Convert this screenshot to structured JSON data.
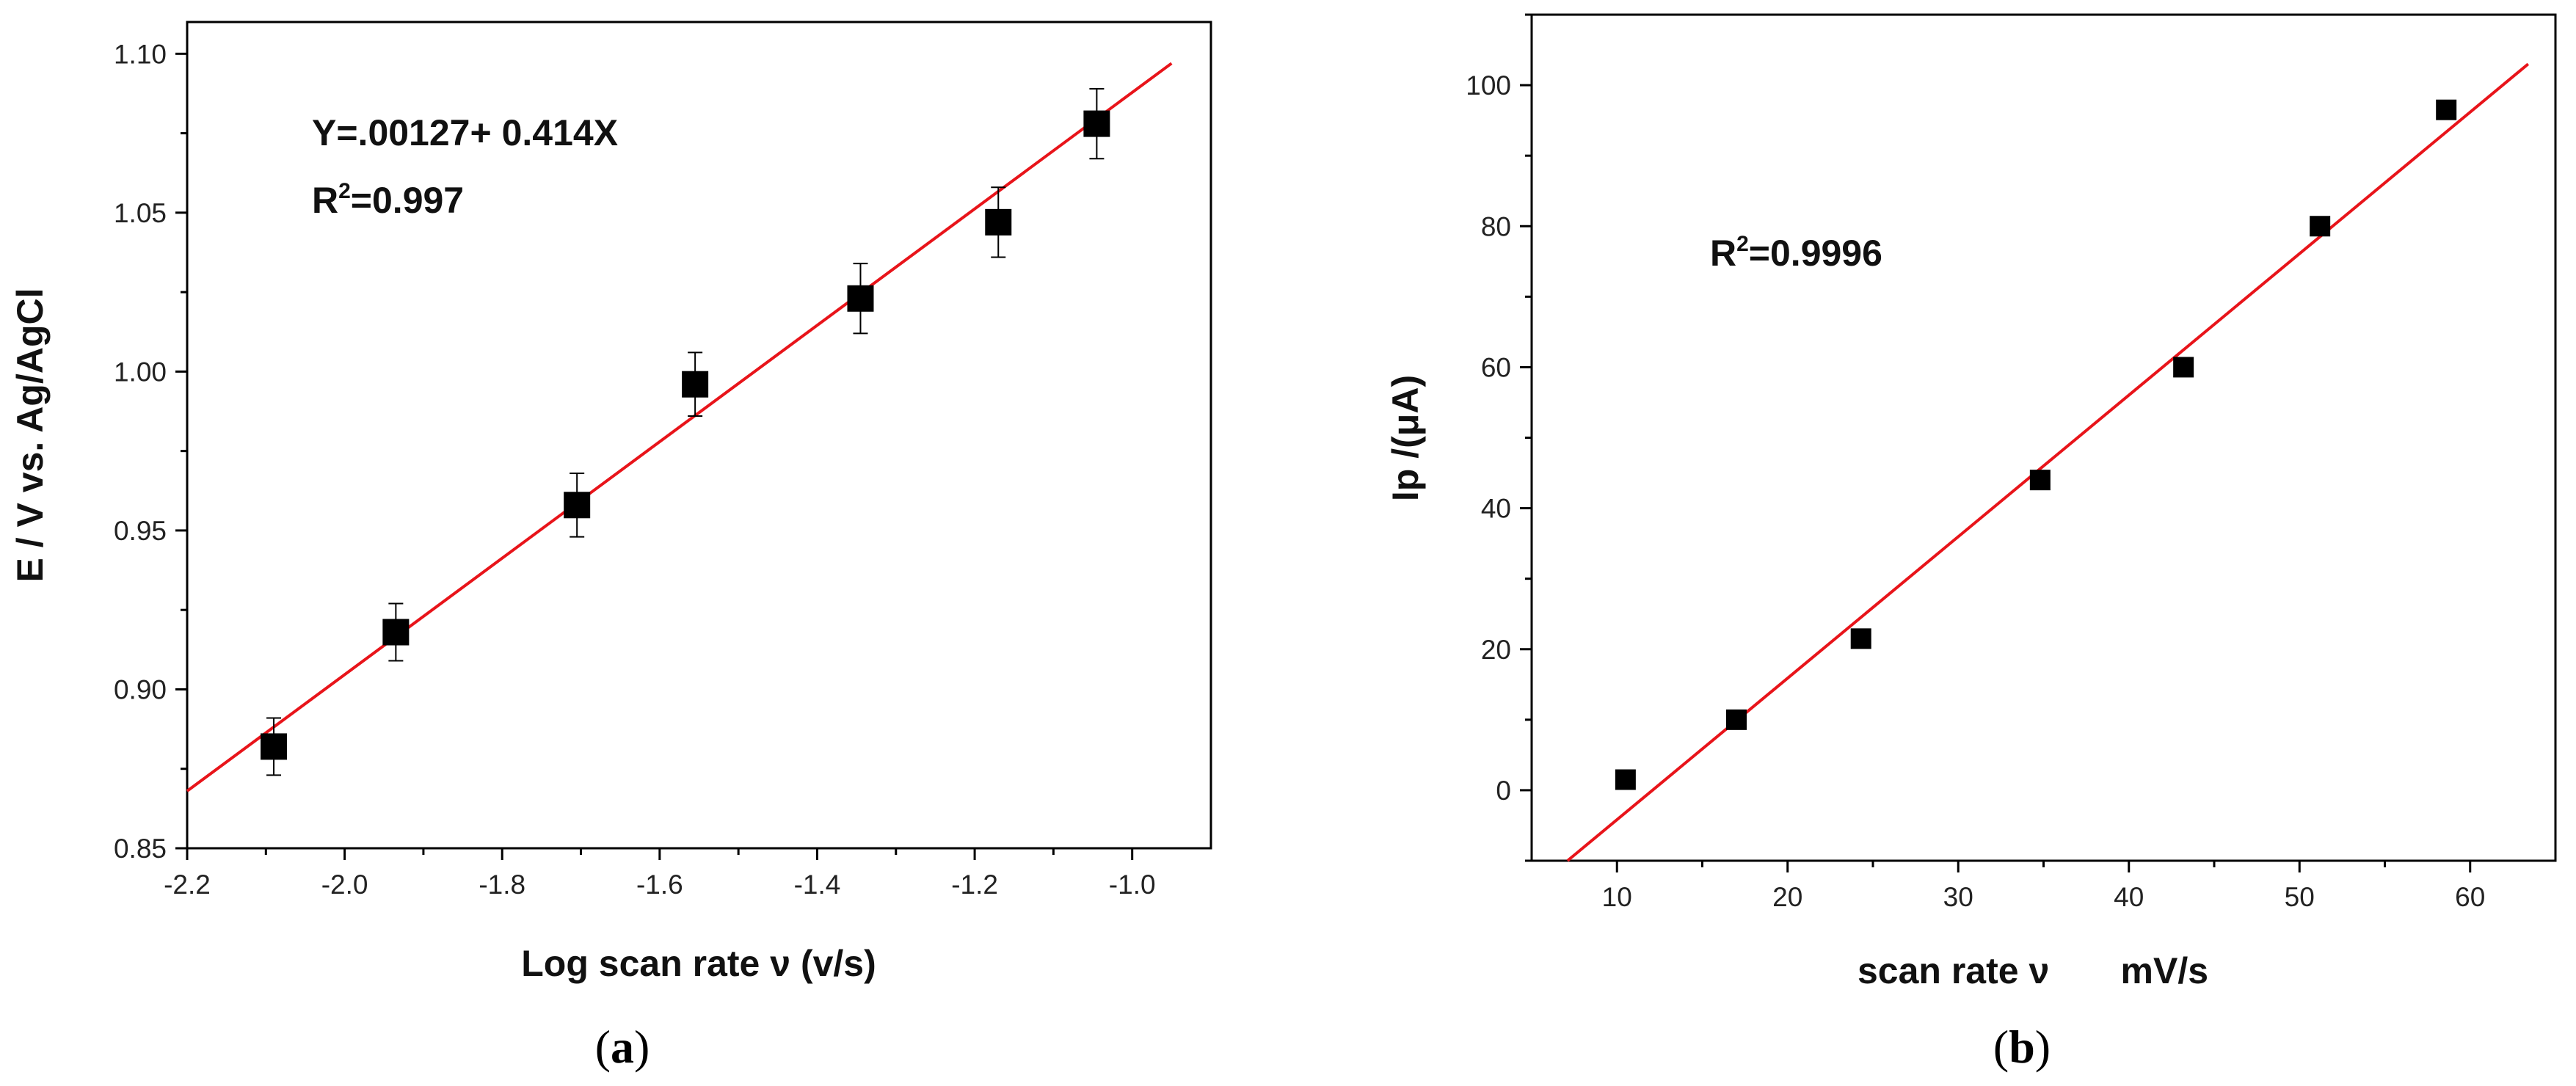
{
  "chart_data": [
    {
      "type": "scatter",
      "panel": "a",
      "caption_open": "(",
      "caption_letter": "a",
      "caption_close": ")",
      "xlabel": "Log scan rate ν (v/s)",
      "ylabel": "E / V vs. Ag/AgCl",
      "xlim": [
        -2.2,
        -0.9
      ],
      "ylim": [
        0.85,
        1.11
      ],
      "xticks": [
        -2.2,
        -2.0,
        -1.8,
        -1.6,
        -1.4,
        -1.2,
        -1.0
      ],
      "xtick_labels": [
        "-2.2",
        "-2.0",
        "-1.8",
        "-1.6",
        "-1.4",
        "-1.2",
        "-1.0"
      ],
      "yticks": [
        0.85,
        0.9,
        0.95,
        1.0,
        1.05,
        1.1
      ],
      "ytick_labels": [
        "0.85",
        "0.90",
        "0.95",
        "1.00",
        "1.05",
        "1.10"
      ],
      "x": [
        -2.09,
        -1.935,
        -1.705,
        -1.555,
        -1.345,
        -1.17,
        -1.045
      ],
      "y": [
        0.882,
        0.918,
        0.958,
        0.996,
        1.023,
        1.047,
        1.078
      ],
      "error": [
        0.009,
        0.009,
        0.01,
        0.01,
        0.011,
        0.011,
        0.011
      ],
      "fit": {
        "x0": -2.2,
        "y0": 0.868,
        "x1": -0.95,
        "y1": 1.097,
        "color": "#e8141a"
      },
      "equation": "Y=.00127+ 0.414X",
      "r2_prefix": "R",
      "r2_exp": "2",
      "r2_value": "=0.997"
    },
    {
      "type": "scatter",
      "panel": "b",
      "caption_open": "(",
      "caption_letter": "b",
      "caption_close": ")",
      "xlabel": "scan rate ν       mV/s",
      "ylabel": "Ip /(μA)",
      "xlim": [
        5,
        65
      ],
      "ylim": [
        -10,
        110
      ],
      "xticks": [
        10,
        20,
        30,
        40,
        50,
        60
      ],
      "xtick_labels": [
        "10",
        "20",
        "30",
        "40",
        "50",
        "60"
      ],
      "yticks": [
        0,
        20,
        40,
        60,
        80,
        100
      ],
      "ytick_labels": [
        "0",
        "20",
        "40",
        "60",
        "80",
        "100"
      ],
      "x": [
        10.5,
        17,
        24.3,
        34.8,
        43.2,
        51.2,
        58.6
      ],
      "y": [
        1.5,
        10,
        21.5,
        44,
        60,
        80,
        96.5
      ],
      "fit": {
        "x0": 7.1,
        "y0": -10,
        "x1": 63.4,
        "y1": 103,
        "color": "#e8141a"
      },
      "r2_prefix": "R",
      "r2_exp": "2",
      "r2_value": "=0.9996"
    }
  ]
}
